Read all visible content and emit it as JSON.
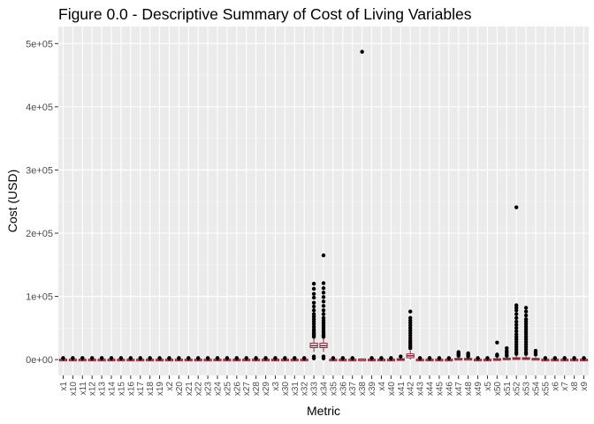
{
  "chart_data": {
    "type": "boxplot",
    "title": "Figure 0.0 - Descriptive Summary of Cost of Living Variables",
    "xlabel": "Metric",
    "ylabel": "Cost (USD)",
    "ylim": [
      0,
      500000
    ],
    "y_ticks": [
      0,
      100000,
      200000,
      300000,
      400000,
      500000
    ],
    "y_tick_labels": [
      "0e+00",
      "1e+05",
      "2e+05",
      "3e+05",
      "4e+05",
      "5e+05"
    ],
    "grid": true,
    "categories": [
      "x1",
      "x10",
      "x11",
      "x12",
      "x13",
      "x14",
      "x15",
      "x16",
      "x17",
      "x18",
      "x19",
      "x2",
      "x20",
      "x21",
      "x22",
      "x23",
      "x24",
      "x25",
      "x26",
      "x27",
      "x28",
      "x29",
      "x3",
      "x30",
      "x31",
      "x32",
      "x33",
      "x34",
      "x35",
      "x36",
      "x37",
      "x38",
      "x39",
      "x4",
      "x40",
      "x41",
      "x42",
      "x43",
      "x44",
      "x45",
      "x46",
      "x47",
      "x48",
      "x49",
      "x5",
      "x50",
      "x51",
      "x52",
      "x53",
      "x54",
      "x55",
      "x6",
      "x7",
      "x8",
      "x9"
    ],
    "boxes": [
      {
        "category": "x33",
        "q1": 19000,
        "median": 22000,
        "q3": 26000,
        "whisker_low": 12000,
        "whisker_high": 33000,
        "outliers": [
          120000,
          112000,
          104000,
          98000,
          90000,
          84000,
          78000,
          72000,
          68000,
          64000,
          60000,
          56000,
          52000,
          48000,
          45000,
          42000,
          40000,
          38000,
          36000,
          5000,
          2000
        ]
      },
      {
        "category": "x34",
        "q1": 19000,
        "median": 22000,
        "q3": 26000,
        "whisker_low": 12000,
        "whisker_high": 33000,
        "outliers": [
          165000,
          121000,
          113000,
          106000,
          99000,
          92000,
          85000,
          78000,
          72000,
          66000,
          62000,
          58000,
          54000,
          50000,
          46000,
          43000,
          40000,
          38000,
          36000,
          5000,
          2000
        ]
      },
      {
        "category": "x38",
        "q1": 0,
        "median": 500,
        "q3": 1000,
        "whisker_low": 0,
        "whisker_high": 2000,
        "outliers": [
          487000
        ]
      },
      {
        "category": "x42",
        "q1": 3000,
        "median": 6000,
        "q3": 9000,
        "whisker_low": 0,
        "whisker_high": 14000,
        "outliers": [
          76000,
          66000,
          62000,
          58000,
          54000,
          50000,
          46000,
          42000,
          38000,
          34000,
          30000,
          27000,
          24000,
          21000,
          18000
        ]
      },
      {
        "category": "x41",
        "q1": 0,
        "median": 500,
        "q3": 1500,
        "whisker_low": 0,
        "whisker_high": 3000,
        "outliers": [
          5000
        ]
      },
      {
        "category": "x47",
        "q1": 0,
        "median": 1000,
        "q3": 2000,
        "whisker_low": 0,
        "whisker_high": 4000,
        "outliers": [
          12000,
          10000,
          8000,
          6000
        ]
      },
      {
        "category": "x48",
        "q1": 0,
        "median": 1000,
        "q3": 2000,
        "whisker_low": 0,
        "whisker_high": 4000,
        "outliers": [
          10000,
          8000,
          6000,
          5000
        ]
      },
      {
        "category": "x50",
        "q1": 0,
        "median": 500,
        "q3": 1500,
        "whisker_low": 0,
        "whisker_high": 3000,
        "outliers": [
          27000,
          8000,
          6000
        ]
      },
      {
        "category": "x51",
        "q1": 0,
        "median": 1000,
        "q3": 2500,
        "whisker_low": 0,
        "whisker_high": 5000,
        "outliers": [
          18000,
          14000,
          11000,
          8000,
          6000
        ]
      },
      {
        "category": "x52",
        "q1": 500,
        "median": 1500,
        "q3": 3000,
        "whisker_low": 0,
        "whisker_high": 6000,
        "outliers": [
          241000,
          86000,
          82000,
          78000,
          72000,
          66000,
          60000,
          55000,
          50000,
          45000,
          40000,
          36000,
          32000,
          28000,
          24000,
          20000,
          16000,
          12000,
          9000
        ]
      },
      {
        "category": "x53",
        "q1": 500,
        "median": 1500,
        "q3": 3000,
        "whisker_low": 0,
        "whisker_high": 6000,
        "outliers": [
          82000,
          76000,
          70000,
          64000,
          60000,
          56000,
          52000,
          48000,
          44000,
          40000,
          36000,
          32000,
          28000,
          24000,
          20000,
          16000,
          12000,
          9000
        ]
      },
      {
        "category": "x54",
        "q1": 0,
        "median": 1000,
        "q3": 2000,
        "whisker_low": 0,
        "whisker_high": 4000,
        "outliers": [
          14000,
          11000,
          8000
        ]
      }
    ]
  },
  "colors": {
    "panel": "#ebebeb",
    "grid_major": "#ffffff",
    "grid_minor": "#f5f5f5",
    "box_outline": "#8b2a3a",
    "point": "#000000",
    "tick_text": "#4d4d4d"
  }
}
